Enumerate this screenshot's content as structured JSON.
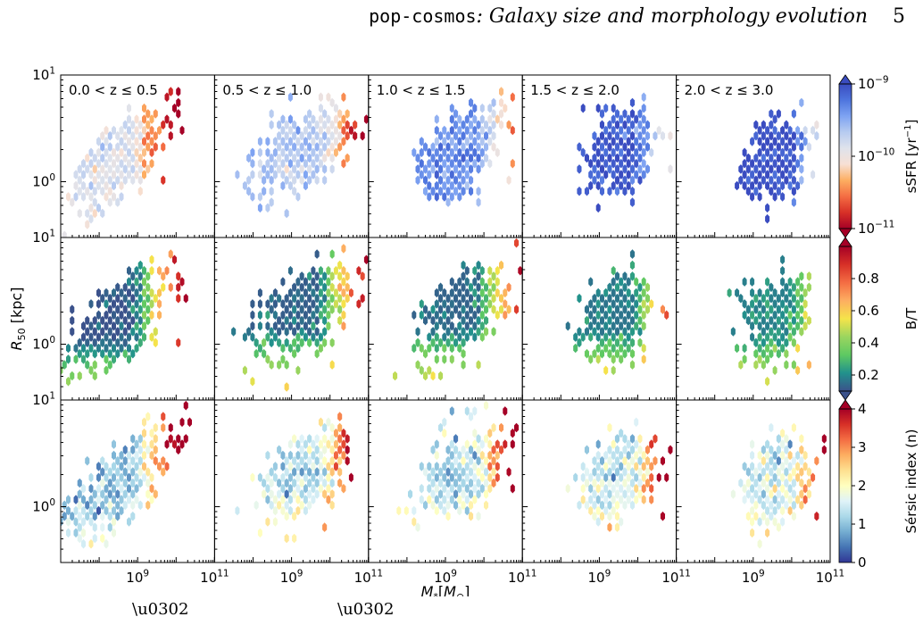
{
  "header": {
    "code_name": "pop-cosmos",
    "title_rest": ": Galaxy size and morphology evolution",
    "page_number": "5"
  },
  "colors": {
    "sSFR_cmap": [
      "#a50026",
      "#d73027",
      "#f46d43",
      "#fdae61",
      "#f7e0d4",
      "#dfe3ec",
      "#b7cbf0",
      "#7ea3f2",
      "#4e75de",
      "#3a4cc0"
    ],
    "BT_cmap": [
      "#3b528b",
      "#21918c",
      "#5ec962",
      "#9bd55f",
      "#f5e44a",
      "#fdae61",
      "#f46d43",
      "#d73027",
      "#a50026"
    ],
    "sersic_cmap": [
      "#313695",
      "#4575b4",
      "#74add1",
      "#abd9e9",
      "#e0f3f8",
      "#ffffbf",
      "#fee090",
      "#fdae61",
      "#f46d43",
      "#d73027",
      "#a50026"
    ],
    "dark_purple": "#3f2b7a"
  },
  "chart_data": {
    "type": "heatmap",
    "plot_style": "hexbin",
    "xlabel": "M_*[M_⊙]",
    "ylabel": "R_50 [kpc]",
    "x_scale": "log",
    "y_scale": "log",
    "xlim": [
      10000000.0,
      100000000000.0
    ],
    "ylim": [
      0.3,
      10
    ],
    "x_ticks": [
      {
        "value": 1000000000.0,
        "label": "10^9"
      },
      {
        "value": 100000000000.0,
        "label": "10^11"
      }
    ],
    "y_ticks": [
      {
        "value": 1,
        "label": "10^0"
      },
      {
        "value": 10,
        "label": "10^1"
      }
    ],
    "columns": [
      {
        "label": "0.0 < z ≤ 0.5",
        "mass_center": 300000000.0,
        "mass_spread_dex": 0.8,
        "size_center": 1.6,
        "slope": 0.25
      },
      {
        "label": "0.5 < z ≤ 1.0",
        "mass_center": 2000000000.0,
        "mass_spread_dex": 0.75,
        "size_center": 2.0,
        "slope": 0.18
      },
      {
        "label": "1.0 < z ≤ 1.5",
        "mass_center": 2500000000.0,
        "mass_spread_dex": 0.7,
        "size_center": 2.0,
        "slope": 0.18
      },
      {
        "label": "1.5 < z ≤ 2.0",
        "mass_center": 3000000000.0,
        "mass_spread_dex": 0.55,
        "size_center": 1.9,
        "slope": 0.12
      },
      {
        "label": "2.0 < z ≤ 3.0",
        "mass_center": 3500000000.0,
        "mass_spread_dex": 0.5,
        "size_center": 1.7,
        "slope": 0.08
      }
    ],
    "rows": [
      {
        "quantity": "sSFR",
        "colorbar_label": "sSFR [yr^-1]",
        "scale": "log",
        "range": [
          1e-11,
          1e-09
        ],
        "ticks": [
          {
            "value": 1e-09,
            "label": "10^-9"
          },
          {
            "value": 1e-10,
            "label": "10^-10"
          },
          {
            "value": 1e-11,
            "label": "10^-11"
          }
        ],
        "extend": "both",
        "typical_value_by_column": [
          1.3e-10,
          2.2e-10,
          4.5e-10,
          8.5e-10,
          1e-09
        ]
      },
      {
        "quantity": "B/T",
        "colorbar_label": "B/T",
        "scale": "linear",
        "range": [
          0.1,
          1.0
        ],
        "ticks": [
          {
            "value": 0.2,
            "label": "0.2"
          },
          {
            "value": 0.4,
            "label": "0.4"
          },
          {
            "value": 0.6,
            "label": "0.6"
          },
          {
            "value": 0.8,
            "label": "0.8"
          }
        ],
        "extend": "both",
        "typical_value_by_column": [
          0.1,
          0.12,
          0.13,
          0.16,
          0.18
        ]
      },
      {
        "quantity": "Sersic index",
        "colorbar_label": "Sérsic index (n)",
        "scale": "linear",
        "range": [
          0,
          4
        ],
        "ticks": [
          {
            "value": 0,
            "label": "0"
          },
          {
            "value": 1,
            "label": "1"
          },
          {
            "value": 2,
            "label": "2"
          },
          {
            "value": 3,
            "label": "3"
          },
          {
            "value": 4,
            "label": "4"
          }
        ],
        "extend": "max",
        "typical_value_by_column": [
          1.0,
          1.3,
          1.3,
          1.4,
          1.5
        ]
      }
    ]
  }
}
